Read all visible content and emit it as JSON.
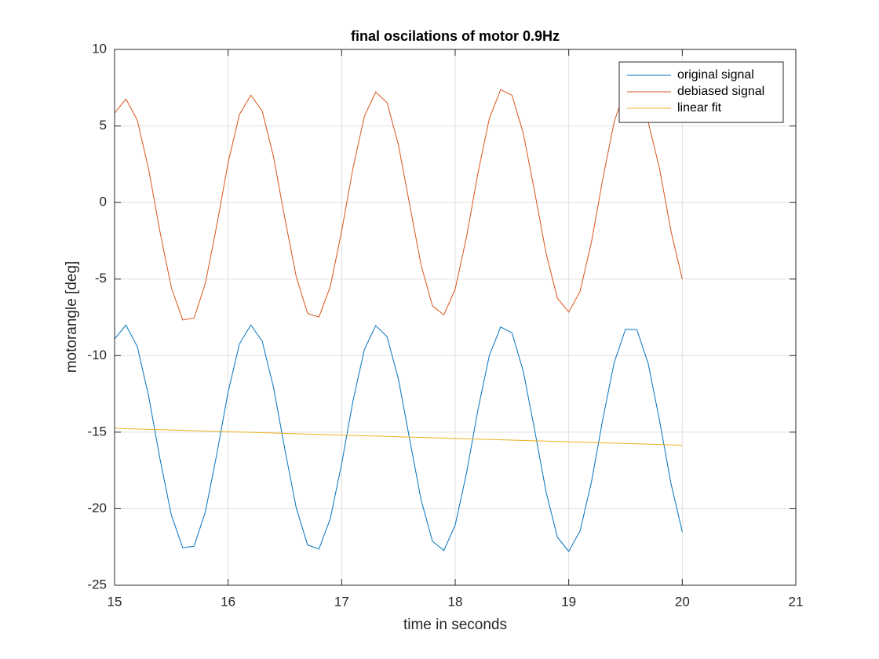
{
  "chart_data": {
    "type": "line",
    "title": "final oscilations of motor 0.9Hz",
    "xlabel": "time in seconds",
    "ylabel": "motorangle [deg]",
    "xlim": [
      15,
      21
    ],
    "ylim": [
      -25,
      10
    ],
    "xticks": [
      15,
      16,
      17,
      18,
      19,
      20,
      21
    ],
    "yticks": [
      -25,
      -20,
      -15,
      -10,
      -5,
      0,
      5,
      10
    ],
    "grid": true,
    "legend": "top-right",
    "x": [
      15,
      15.1,
      15.2,
      15.3,
      15.4,
      15.5,
      15.6,
      15.7,
      15.8,
      15.9,
      16,
      16.1,
      16.2,
      16.3,
      16.4,
      16.5,
      16.6,
      16.7,
      16.8,
      16.9,
      17,
      17.1,
      17.2,
      17.3,
      17.4,
      17.5,
      17.6,
      17.7,
      17.8,
      17.9,
      18,
      18.1,
      18.2,
      18.3,
      18.4,
      18.5,
      18.6,
      18.7,
      18.8,
      18.9,
      19,
      19.1,
      19.2,
      19.3,
      19.4,
      19.5,
      19.6,
      19.7,
      19.8,
      19.9,
      20
    ],
    "series": [
      {
        "name": "original signal",
        "color": "#0072bd",
        "values": [
          -8.91,
          -8.01,
          -9.41,
          -12.65,
          -16.75,
          -20.42,
          -22.55,
          -22.45,
          -20.19,
          -16.44,
          -12.37,
          -9.23,
          -8.0,
          -9.06,
          -12.08,
          -16.13,
          -19.95,
          -22.37,
          -22.63,
          -20.65,
          -17.06,
          -12.95,
          -9.6,
          -8.04,
          -8.76,
          -11.54,
          -15.5,
          -19.44,
          -22.13,
          -22.73,
          -21.07,
          -17.66,
          -13.55,
          -10.01,
          -8.13,
          -8.51,
          -11.03,
          -14.87,
          -18.89,
          -21.86,
          -22.79,
          -21.45,
          -18.25,
          -14.16,
          -10.46,
          -8.28,
          -8.3,
          -10.52,
          -14.25,
          -18.33,
          -21.51
        ]
      },
      {
        "name": "debiased signal",
        "color": "#d95319",
        "values": [
          5.84,
          6.76,
          5.38,
          2.17,
          -1.91,
          -5.56,
          -7.67,
          -7.55,
          -5.26,
          -1.49,
          2.6,
          5.76,
          7.01,
          5.98,
          2.98,
          -1.05,
          -4.85,
          -7.25,
          -7.48,
          -5.48,
          -1.87,
          2.26,
          5.63,
          7.22,
          6.52,
          3.76,
          -0.18,
          -4.1,
          -6.76,
          -7.34,
          -5.66,
          -2.23,
          1.9,
          5.47,
          7.37,
          7.01,
          4.51,
          0.69,
          -3.3,
          -6.25,
          -7.16,
          -5.8,
          -2.58,
          1.54,
          5.26,
          7.46,
          7.46,
          5.26,
          2.21,
          -1.85,
          -5.01
        ]
      },
      {
        "name": "linear fit",
        "color": "#edb120",
        "x": [
          15,
          20
        ],
        "values": [
          -14.75,
          -15.85
        ]
      }
    ]
  }
}
